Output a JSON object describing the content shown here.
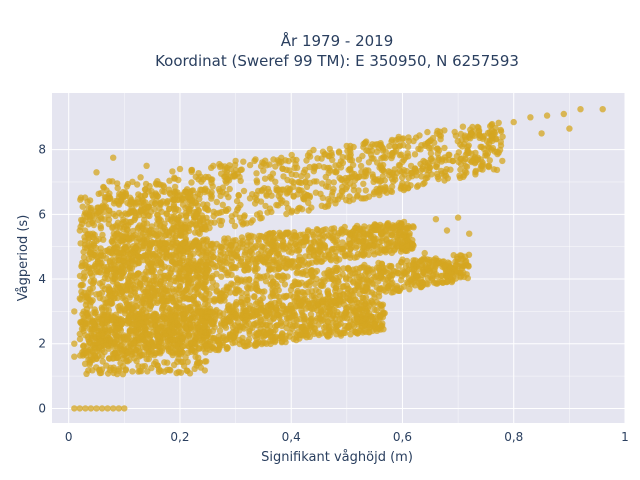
{
  "chart_data": {
    "type": "scatter",
    "title_lines": [
      "År 1979 - 2019",
      "Koordinat (Sweref 99 TM): E 350950, N 6257593"
    ],
    "xlabel": "Signifikant våghöjd (m)",
    "ylabel": "Vågperiod (s)",
    "xlim": [
      -0.03,
      1.0
    ],
    "ylim": [
      -0.45,
      9.75
    ],
    "x_ticks": [
      0,
      0.2,
      0.4,
      0.6,
      0.8,
      1
    ],
    "x_tick_labels": [
      "0",
      "0,2",
      "0,4",
      "0,6",
      "0,8",
      "1"
    ],
    "y_ticks": [
      0,
      2,
      4,
      6,
      8
    ],
    "y_tick_labels": [
      "0",
      "2",
      "4",
      "6",
      "8"
    ],
    "grid": true,
    "colors": {
      "marker": "#d4a520",
      "plot_bg": "#e5e5f0",
      "grid": "#ffffff",
      "text": "#2a3f5f"
    },
    "bands": [
      {
        "x0": 0.02,
        "x1": 0.78,
        "y0_lo": 4.6,
        "y0_hi": 6.9,
        "y1_lo": 7.4,
        "y1_hi": 8.9
      },
      {
        "x0": 0.02,
        "x1": 0.62,
        "y0_lo": 3.4,
        "y0_hi": 4.9,
        "y1_lo": 4.9,
        "y1_hi": 5.8
      },
      {
        "x0": 0.02,
        "x1": 0.72,
        "y0_lo": 1.8,
        "y0_hi": 3.5,
        "y1_lo": 4.0,
        "y1_hi": 4.8
      },
      {
        "x0": 0.02,
        "x1": 0.57,
        "y0_lo": 1.3,
        "y0_hi": 2.7,
        "y1_lo": 2.4,
        "y1_hi": 3.5
      },
      {
        "x0": 0.02,
        "x1": 0.25,
        "y0_lo": 1.0,
        "y0_hi": 6.6,
        "y1_lo": 1.1,
        "y1_hi": 6.8
      }
    ],
    "points": [
      [
        0.01,
        0
      ],
      [
        0.02,
        0
      ],
      [
        0.03,
        0
      ],
      [
        0.04,
        0
      ],
      [
        0.05,
        0
      ],
      [
        0.06,
        0
      ],
      [
        0.07,
        0
      ],
      [
        0.08,
        0
      ],
      [
        0.09,
        0
      ],
      [
        0.1,
        0
      ],
      [
        0.96,
        9.25
      ],
      [
        0.92,
        9.25
      ],
      [
        0.89,
        9.1
      ],
      [
        0.86,
        9.05
      ],
      [
        0.83,
        9.0
      ],
      [
        0.8,
        8.85
      ],
      [
        0.9,
        8.65
      ],
      [
        0.85,
        8.5
      ],
      [
        0.78,
        8.4
      ],
      [
        0.76,
        8.0
      ],
      [
        0.08,
        7.75
      ],
      [
        0.14,
        7.5
      ],
      [
        0.2,
        7.4
      ],
      [
        0.26,
        7.5
      ],
      [
        0.3,
        7.65
      ],
      [
        0.05,
        7.3
      ],
      [
        0.04,
        6.2
      ],
      [
        0.02,
        5.5
      ],
      [
        0.03,
        5.8
      ],
      [
        0.68,
        5.5
      ],
      [
        0.72,
        5.4
      ],
      [
        0.7,
        5.9
      ],
      [
        0.62,
        5.6
      ],
      [
        0.66,
        5.85
      ],
      [
        0.6,
        5.3
      ],
      [
        0.55,
        5.2
      ],
      [
        0.6,
        4.6
      ],
      [
        0.64,
        4.8
      ],
      [
        0.58,
        4.4
      ],
      [
        0.56,
        4.2
      ],
      [
        0.62,
        4.5
      ],
      [
        0.45,
        3.6
      ],
      [
        0.5,
        3.8
      ],
      [
        0.56,
        3.7
      ],
      [
        0.48,
        3.5
      ],
      [
        0.52,
        3.9
      ],
      [
        0.2,
        4.5
      ],
      [
        0.25,
        4.8
      ],
      [
        0.3,
        5.2
      ],
      [
        0.33,
        4.6
      ],
      [
        0.35,
        5.3
      ],
      [
        0.01,
        3.0
      ],
      [
        0.02,
        2.3
      ],
      [
        0.01,
        1.6
      ],
      [
        0.02,
        3.4
      ],
      [
        0.01,
        2.0
      ]
    ]
  }
}
